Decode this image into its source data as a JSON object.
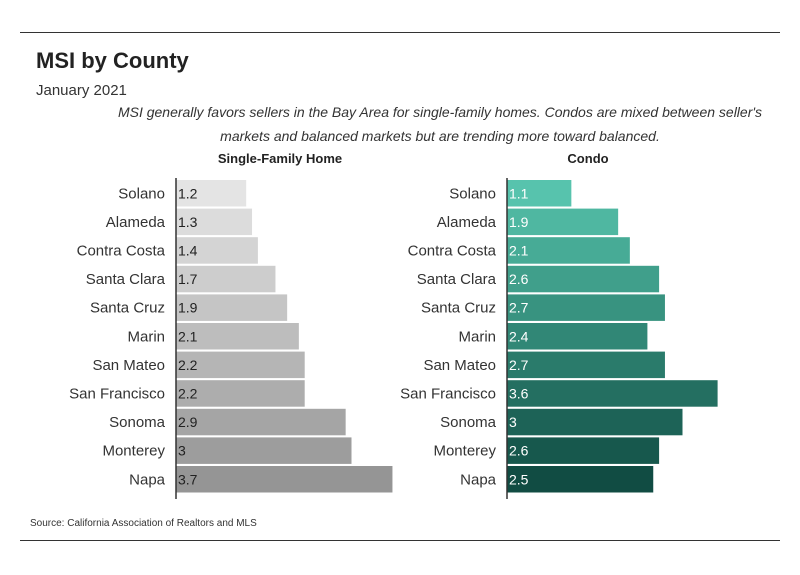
{
  "header": {
    "title": "MSI by County",
    "subtitle": "January 2021",
    "note": "MSI generally favors sellers in the Bay Area for single-family homes. Condos are mixed between seller's markets and balanced markets but are trending more toward balanced."
  },
  "footer": {
    "source": "Source:  California Association of Realtors and MLS"
  },
  "chart_data": [
    {
      "type": "bar",
      "orientation": "horizontal",
      "title": "Single-Family Home",
      "categories": [
        "Solano",
        "Alameda",
        "Contra Costa",
        "Santa Clara",
        "Santa Cruz",
        "Marin",
        "San Mateo",
        "San Francisco",
        "Sonoma",
        "Monterey",
        "Napa"
      ],
      "values": [
        1.2,
        1.3,
        1.4,
        1.7,
        1.9,
        2.1,
        2.2,
        2.2,
        2.9,
        3,
        3.7
      ],
      "value_labels": [
        "1.2",
        "1.3",
        "1.4",
        "1.7",
        "1.9",
        "2.1",
        "2.2",
        "2.2",
        "2.9",
        "3",
        "3.7"
      ],
      "colors": [
        "#e4e4e4",
        "#dcdcdc",
        "#d4d4d4",
        "#cdcdcd",
        "#c5c5c5",
        "#bdbdbd",
        "#b5b5b5",
        "#adadad",
        "#a5a5a5",
        "#9d9d9d",
        "#959595"
      ],
      "label_color": "#222222",
      "xlim": [
        0,
        3.8
      ],
      "grid": false
    },
    {
      "type": "bar",
      "orientation": "horizontal",
      "title": "Condo",
      "categories": [
        "Solano",
        "Alameda",
        "Contra Costa",
        "Santa Clara",
        "Santa Cruz",
        "Marin",
        "San Mateo",
        "San Francisco",
        "Sonoma",
        "Monterey",
        "Napa"
      ],
      "values": [
        1.1,
        1.9,
        2.1,
        2.6,
        2.7,
        2.4,
        2.7,
        3.6,
        3,
        2.6,
        2.5
      ],
      "value_labels": [
        "1.1",
        "1.9",
        "2.1",
        "2.6",
        "2.7",
        "2.4",
        "2.7",
        "3.6",
        "3",
        "2.6",
        "2.5"
      ],
      "colors": [
        "#57c3ad",
        "#4fb7a1",
        "#47ab96",
        "#409f8b",
        "#389380",
        "#318776",
        "#2a7b6b",
        "#246f61",
        "#1d6357",
        "#17584d",
        "#114c43"
      ],
      "label_color": "#ffffff",
      "xlim": [
        0,
        3.8
      ],
      "grid": false
    }
  ]
}
